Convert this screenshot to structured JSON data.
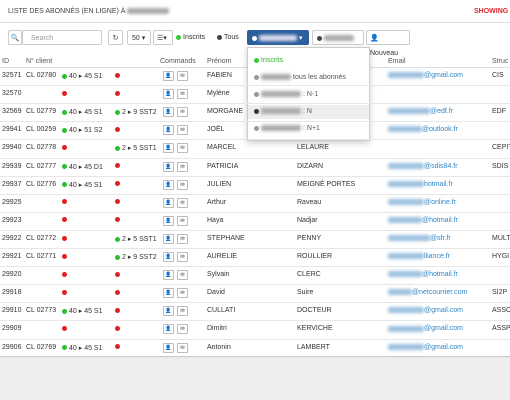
{
  "header": {
    "title": "LISTE DES ABONNÉS (EN LIGNE) À",
    "showing": "SHOWING"
  },
  "toolbar": {
    "search": "Search",
    "page_size": "50",
    "inscrits": "Inscrits",
    "tous": "Tous",
    "nouveau": "Nouveau"
  },
  "dropdown": {
    "items": [
      "Inscrits",
      "tous les abonnés",
      ": N-1",
      ": N",
      ": N+1"
    ]
  },
  "table": {
    "columns": [
      "ID",
      "N° client",
      null,
      null,
      "Commands",
      "Prénom",
      null,
      "Email",
      "Struc"
    ],
    "rows": [
      [
        "32571",
        "CL 02780",
        {
          "dot": "green",
          "label": "40 ▸ 45  S1"
        },
        {
          "dot": "red"
        },
        "FABIEN",
        null,
        "@gmail.com",
        "CIS"
      ],
      [
        "32570",
        null,
        {
          "dot": "red"
        },
        {
          "dot": "red"
        },
        "Mylène",
        null,
        null,
        null
      ],
      [
        "32569",
        "CL 02779",
        {
          "dot": "green",
          "label": "40 ▸ 45  S1"
        },
        {
          "dot": "green",
          "label": "2 ▸ 9  SST2"
        },
        "MORGANE",
        null,
        "@edf.fr",
        "EDF"
      ],
      [
        "29941",
        "CL 00259",
        {
          "dot": "green",
          "label": "40 ▸ 51  S2"
        },
        {
          "dot": "red"
        },
        "JOËL",
        null,
        "@outlook.fr",
        null
      ],
      [
        "29940",
        "CL 02778",
        {
          "dot": "red"
        },
        {
          "dot": "green",
          "label": "2 ▸ 5  SST1"
        },
        "MARCEL",
        "LELAURE",
        null,
        "CEPIT"
      ],
      [
        "29939",
        "CL 02777",
        {
          "dot": "green",
          "label": "40 ▸ 45  D1"
        },
        {
          "dot": "red"
        },
        "PATRICIA",
        "DIZARN",
        "@sdis84.fr",
        "SDIS"
      ],
      [
        "29937",
        "CL 02776",
        {
          "dot": "green",
          "label": "40 ▸ 45  S1"
        },
        {
          "dot": "red"
        },
        "JULIEN",
        "MEIGNÉ PORTES",
        "hotmail.fr",
        null
      ],
      [
        "29925",
        null,
        {
          "dot": "red"
        },
        {
          "dot": "red"
        },
        "Arthur",
        "Raveau",
        "@online.fr",
        null
      ],
      [
        "29923",
        null,
        {
          "dot": "red"
        },
        {
          "dot": "red"
        },
        "Haya",
        "Nadjar",
        "@hotmail.fr",
        null
      ],
      [
        "29922",
        "CL 02772",
        {
          "dot": "red"
        },
        {
          "dot": "green",
          "label": "2 ▸ 5  SST1"
        },
        "STEPHANE",
        "PENNY",
        "@sfr.fr",
        "MULT"
      ],
      [
        "29921",
        "CL 02771",
        {
          "dot": "red"
        },
        {
          "dot": "green",
          "label": "2 ▸ 9  SST2"
        },
        "AURELIE",
        "ROULLIER",
        "lliance.fr",
        "HYGI"
      ],
      [
        "29920",
        null,
        {
          "dot": "red"
        },
        {
          "dot": "red"
        },
        "Sylvain",
        "CLERC",
        "@hotmail.fr",
        null
      ],
      [
        "29918",
        null,
        {
          "dot": "red"
        },
        {
          "dot": "red"
        },
        "David",
        "Suire",
        "@netcourrier.com",
        "SI2P"
      ],
      [
        "29910",
        "CL 02773",
        {
          "dot": "green",
          "label": "40 ▸ 45  S1"
        },
        {
          "dot": "red"
        },
        "CULLATI",
        "DOCTEUR",
        "@gmail.com",
        "ASSO"
      ],
      [
        "29909",
        null,
        {
          "dot": "red"
        },
        {
          "dot": "red"
        },
        "Dimitri",
        "KERVICHE",
        "@gmail.com",
        "ASSP"
      ],
      [
        "29906",
        "CL 02769",
        {
          "dot": "green",
          "label": "40 ▸ 45  S1"
        },
        {
          "dot": "red"
        },
        "Antonin",
        "LAMBERT",
        "@gmail.com",
        null
      ]
    ]
  }
}
